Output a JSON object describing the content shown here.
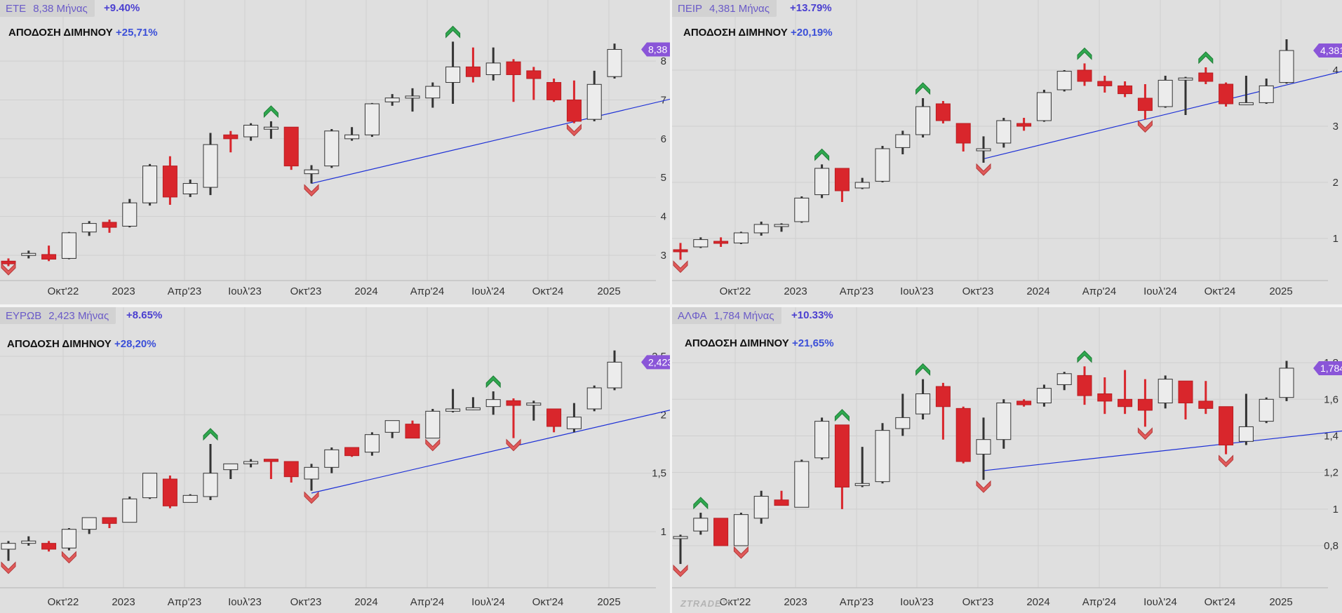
{
  "chart_data": [
    {
      "type": "candlestick",
      "ticker": "ΕΤΕ",
      "price_label": "8,38 Μήνας",
      "change": "+9.40%",
      "performance_label": "ΑΠΟΔΟΣΗ ΔΙΜΗΝΟΥ",
      "performance_value": "+25,71%",
      "last_price": "8,38",
      "y_ticks": [
        "8",
        "7",
        "6",
        "5",
        "4",
        "3"
      ],
      "y_tick_values": [
        8,
        7,
        6,
        5,
        4,
        3
      ],
      "ylim": [
        2.35,
        8.85
      ],
      "x_ticks": [
        "Οκτ'22",
        "2023",
        "Απρ'23",
        "Ιουλ'23",
        "Οκτ'23",
        "2024",
        "Απρ'24",
        "Ιουλ'24",
        "Οκτ'24",
        "2025"
      ],
      "candles": [
        [
          2.85,
          2.92,
          2.72,
          2.78
        ],
        [
          3.0,
          3.12,
          2.92,
          3.05
        ],
        [
          3.02,
          3.25,
          2.85,
          2.9
        ],
        [
          2.92,
          3.6,
          2.9,
          3.58
        ],
        [
          3.6,
          3.88,
          3.5,
          3.82
        ],
        [
          3.85,
          3.92,
          3.58,
          3.72
        ],
        [
          3.75,
          4.45,
          3.72,
          4.35
        ],
        [
          4.35,
          5.35,
          4.28,
          5.3
        ],
        [
          5.3,
          5.55,
          4.3,
          4.5
        ],
        [
          4.58,
          4.95,
          4.5,
          4.85
        ],
        [
          4.75,
          6.15,
          4.55,
          5.85
        ],
        [
          6.1,
          6.2,
          5.65,
          6.0
        ],
        [
          6.05,
          6.4,
          5.95,
          6.35
        ],
        [
          6.25,
          6.45,
          6.0,
          6.3
        ],
        [
          6.3,
          6.3,
          5.2,
          5.3
        ],
        [
          5.1,
          5.32,
          4.85,
          5.2
        ],
        [
          5.3,
          6.25,
          5.25,
          6.2
        ],
        [
          6.0,
          6.3,
          5.95,
          6.1
        ],
        [
          6.1,
          6.92,
          6.05,
          6.9
        ],
        [
          6.95,
          7.15,
          6.85,
          7.05
        ],
        [
          7.1,
          7.3,
          6.7,
          7.1
        ],
        [
          7.05,
          7.45,
          6.8,
          7.35
        ],
        [
          7.45,
          8.5,
          6.9,
          7.85
        ],
        [
          7.85,
          8.35,
          7.45,
          7.6
        ],
        [
          7.65,
          8.35,
          7.5,
          7.95
        ],
        [
          7.98,
          8.05,
          6.95,
          7.65
        ],
        [
          7.75,
          7.85,
          7.0,
          7.55
        ],
        [
          7.45,
          7.55,
          6.95,
          7.0
        ],
        [
          7.0,
          7.5,
          6.4,
          6.45
        ],
        [
          6.5,
          7.75,
          6.45,
          7.4
        ],
        [
          7.6,
          8.45,
          7.55,
          8.3
        ]
      ],
      "markers": [
        {
          "i": 0,
          "dir": "down"
        },
        {
          "i": 13,
          "dir": "up"
        },
        {
          "i": 15,
          "dir": "down"
        },
        {
          "i": 22,
          "dir": "up"
        },
        {
          "i": 28,
          "dir": "down"
        }
      ],
      "trendline": {
        "i1": 15,
        "v1": 4.85,
        "i2": 33,
        "v2": 7.05
      }
    },
    {
      "type": "candlestick",
      "ticker": "ΠΕΙΡ",
      "price_label": "4,381 Μήνας",
      "change": "+13.79%",
      "performance_label": "ΑΠΟΔΟΣΗ ΔΙΜΗΝΟΥ",
      "performance_value": "+20,19%",
      "last_price": "4,381",
      "y_ticks": [
        "4",
        "3",
        "2",
        "1"
      ],
      "y_tick_values": [
        4,
        3,
        2,
        1
      ],
      "ylim": [
        0.25,
        4.75
      ],
      "x_ticks": [
        "Οκτ'22",
        "2023",
        "Απρ'23",
        "Ιουλ'23",
        "Οκτ'23",
        "2024",
        "Απρ'24",
        "Ιουλ'24",
        "Οκτ'24",
        "2025"
      ],
      "candles": [
        [
          0.8,
          0.92,
          0.62,
          0.78
        ],
        [
          0.85,
          1.02,
          0.83,
          0.98
        ],
        [
          0.95,
          1.02,
          0.85,
          0.92
        ],
        [
          0.92,
          1.12,
          0.9,
          1.1
        ],
        [
          1.1,
          1.3,
          1.05,
          1.25
        ],
        [
          1.25,
          1.27,
          1.12,
          1.25
        ],
        [
          1.3,
          1.75,
          1.28,
          1.72
        ],
        [
          1.78,
          2.32,
          1.72,
          2.25
        ],
        [
          2.25,
          2.25,
          1.65,
          1.85
        ],
        [
          1.9,
          2.08,
          1.88,
          2.0
        ],
        [
          2.02,
          2.65,
          2.0,
          2.6
        ],
        [
          2.62,
          2.92,
          2.5,
          2.85
        ],
        [
          2.85,
          3.5,
          2.8,
          3.35
        ],
        [
          3.4,
          3.45,
          3.05,
          3.1
        ],
        [
          3.05,
          3.05,
          2.55,
          2.7
        ],
        [
          2.6,
          2.82,
          2.35,
          2.6
        ],
        [
          2.7,
          3.15,
          2.62,
          3.1
        ],
        [
          3.05,
          3.15,
          2.92,
          3.0
        ],
        [
          3.1,
          3.65,
          3.08,
          3.6
        ],
        [
          3.65,
          4.0,
          3.62,
          3.98
        ],
        [
          4.0,
          4.12,
          3.72,
          3.8
        ],
        [
          3.8,
          3.9,
          3.6,
          3.72
        ],
        [
          3.72,
          3.8,
          3.52,
          3.58
        ],
        [
          3.5,
          3.75,
          3.12,
          3.28
        ],
        [
          3.35,
          3.9,
          3.33,
          3.82
        ],
        [
          3.85,
          3.88,
          3.2,
          3.86
        ],
        [
          3.95,
          4.05,
          3.75,
          3.8
        ],
        [
          3.75,
          3.78,
          3.35,
          3.4
        ],
        [
          3.4,
          3.9,
          3.38,
          3.42
        ],
        [
          3.42,
          3.85,
          3.4,
          3.72
        ],
        [
          3.78,
          4.55,
          3.76,
          4.35
        ]
      ],
      "markers": [
        {
          "i": 0,
          "dir": "down"
        },
        {
          "i": 7,
          "dir": "up"
        },
        {
          "i": 12,
          "dir": "up"
        },
        {
          "i": 15,
          "dir": "down"
        },
        {
          "i": 20,
          "dir": "up"
        },
        {
          "i": 23,
          "dir": "down"
        },
        {
          "i": 26,
          "dir": "up"
        }
      ],
      "trendline": {
        "i1": 15,
        "v1": 2.42,
        "i2": 33,
        "v2": 4.0
      }
    },
    {
      "type": "candlestick",
      "ticker": "ΕΥΡΩΒ",
      "price_label": "2,423 Μήνας",
      "change": "+8.65%",
      "performance_label": "ΑΠΟΔΟΣΗ ΔΙΜΗΝΟΥ",
      "performance_value": "+28,20%",
      "last_price": "2,423",
      "y_ticks": [
        "2,5",
        "2",
        "1,5",
        "1"
      ],
      "y_tick_values": [
        2.5,
        2,
        1.5,
        1
      ],
      "ylim": [
        0.52,
        2.68
      ],
      "x_ticks": [
        "Οκτ'22",
        "2023",
        "Απρ'23",
        "Ιουλ'23",
        "Οκτ'23",
        "2024",
        "Απρ'24",
        "Ιουλ'24",
        "Οκτ'24",
        "2025"
      ],
      "candles": [
        [
          0.85,
          0.92,
          0.75,
          0.9
        ],
        [
          0.9,
          0.96,
          0.88,
          0.92
        ],
        [
          0.9,
          0.92,
          0.83,
          0.85
        ],
        [
          0.86,
          1.03,
          0.84,
          1.02
        ],
        [
          1.02,
          1.12,
          0.98,
          1.12
        ],
        [
          1.12,
          1.12,
          1.03,
          1.07
        ],
        [
          1.08,
          1.3,
          1.08,
          1.28
        ],
        [
          1.29,
          1.5,
          1.28,
          1.5
        ],
        [
          1.45,
          1.48,
          1.2,
          1.22
        ],
        [
          1.25,
          1.32,
          1.25,
          1.31
        ],
        [
          1.3,
          1.75,
          1.27,
          1.5
        ],
        [
          1.53,
          1.58,
          1.45,
          1.58
        ],
        [
          1.58,
          1.62,
          1.55,
          1.6
        ],
        [
          1.62,
          1.62,
          1.45,
          1.6
        ],
        [
          1.6,
          1.6,
          1.42,
          1.47
        ],
        [
          1.45,
          1.58,
          1.35,
          1.55
        ],
        [
          1.55,
          1.72,
          1.5,
          1.7
        ],
        [
          1.72,
          1.72,
          1.64,
          1.65
        ],
        [
          1.68,
          1.85,
          1.65,
          1.83
        ],
        [
          1.85,
          1.93,
          1.8,
          1.95
        ],
        [
          1.92,
          1.95,
          1.8,
          1.8
        ],
        [
          1.8,
          2.05,
          1.8,
          2.03
        ],
        [
          2.03,
          2.22,
          2.02,
          2.05
        ],
        [
          2.05,
          2.15,
          2.04,
          2.06
        ],
        [
          2.07,
          2.2,
          2.0,
          2.13
        ],
        [
          2.12,
          2.14,
          1.8,
          2.08
        ],
        [
          2.1,
          2.12,
          1.95,
          2.1
        ],
        [
          2.05,
          2.05,
          1.85,
          1.9
        ],
        [
          1.88,
          2.1,
          1.85,
          1.98
        ],
        [
          2.05,
          2.25,
          2.03,
          2.23
        ],
        [
          2.23,
          2.55,
          2.21,
          2.45
        ]
      ],
      "markers": [
        {
          "i": 0,
          "dir": "down"
        },
        {
          "i": 3,
          "dir": "down"
        },
        {
          "i": 10,
          "dir": "up"
        },
        {
          "i": 15,
          "dir": "down"
        },
        {
          "i": 21,
          "dir": "down"
        },
        {
          "i": 24,
          "dir": "up"
        },
        {
          "i": 25,
          "dir": "down"
        }
      ],
      "trendline": {
        "i1": 15,
        "v1": 1.33,
        "i2": 33,
        "v2": 2.05
      }
    },
    {
      "type": "candlestick",
      "ticker": "ΑΛΦΑ",
      "price_label": "1,784 Μήνας",
      "change": "+10.33%",
      "performance_label": "ΑΠΟΔΟΣΗ ΔΙΜΗΝΟΥ",
      "performance_value": "+21,65%",
      "last_price": "1,784",
      "y_ticks": [
        "1,8",
        "1,6",
        "1,4",
        "1,2",
        "1",
        "0,8"
      ],
      "y_tick_values": [
        1.8,
        1.6,
        1.4,
        1.2,
        1.0,
        0.8
      ],
      "ylim": [
        0.57,
        1.95
      ],
      "x_ticks": [
        "Οκτ'22",
        "2023",
        "Απρ'23",
        "Ιουλ'23",
        "Οκτ'23",
        "2024",
        "Απρ'24",
        "Ιουλ'24",
        "Οκτ'24",
        "2025"
      ],
      "candles": [
        [
          0.84,
          0.86,
          0.7,
          0.85
        ],
        [
          0.88,
          0.98,
          0.86,
          0.95
        ],
        [
          0.95,
          0.95,
          0.8,
          0.8
        ],
        [
          0.8,
          0.98,
          0.8,
          0.97
        ],
        [
          0.95,
          1.1,
          0.92,
          1.07
        ],
        [
          1.05,
          1.1,
          1.02,
          1.02
        ],
        [
          1.01,
          1.27,
          1.01,
          1.26
        ],
        [
          1.28,
          1.5,
          1.27,
          1.48
        ],
        [
          1.46,
          1.46,
          1.0,
          1.12
        ],
        [
          1.13,
          1.34,
          1.12,
          1.14
        ],
        [
          1.15,
          1.47,
          1.14,
          1.43
        ],
        [
          1.44,
          1.63,
          1.4,
          1.5
        ],
        [
          1.52,
          1.71,
          1.49,
          1.63
        ],
        [
          1.67,
          1.69,
          1.38,
          1.56
        ],
        [
          1.55,
          1.56,
          1.25,
          1.26
        ],
        [
          1.3,
          1.5,
          1.16,
          1.38
        ],
        [
          1.38,
          1.6,
          1.33,
          1.58
        ],
        [
          1.59,
          1.6,
          1.56,
          1.57
        ],
        [
          1.58,
          1.68,
          1.56,
          1.66
        ],
        [
          1.68,
          1.75,
          1.65,
          1.74
        ],
        [
          1.73,
          1.78,
          1.57,
          1.62
        ],
        [
          1.63,
          1.72,
          1.52,
          1.59
        ],
        [
          1.6,
          1.76,
          1.52,
          1.56
        ],
        [
          1.6,
          1.71,
          1.45,
          1.54
        ],
        [
          1.58,
          1.73,
          1.55,
          1.71
        ],
        [
          1.7,
          1.7,
          1.49,
          1.58
        ],
        [
          1.59,
          1.7,
          1.52,
          1.55
        ],
        [
          1.56,
          1.56,
          1.3,
          1.35
        ],
        [
          1.37,
          1.63,
          1.35,
          1.45
        ],
        [
          1.48,
          1.61,
          1.47,
          1.6
        ],
        [
          1.61,
          1.81,
          1.59,
          1.77
        ]
      ],
      "markers": [
        {
          "i": 0,
          "dir": "down"
        },
        {
          "i": 1,
          "dir": "up"
        },
        {
          "i": 3,
          "dir": "down"
        },
        {
          "i": 8,
          "dir": "up"
        },
        {
          "i": 12,
          "dir": "up"
        },
        {
          "i": 15,
          "dir": "down"
        },
        {
          "i": 20,
          "dir": "up"
        },
        {
          "i": 23,
          "dir": "down"
        },
        {
          "i": 27,
          "dir": "down"
        }
      ],
      "trendline": {
        "i1": 15,
        "v1": 1.21,
        "i2": 33,
        "v2": 1.43
      }
    }
  ],
  "watermark": "ZTRADE™",
  "colors": {
    "background": "#dfdfdf",
    "up_candle_fill": "#ececec",
    "down_candle_fill": "#d9262c",
    "trendline": "#1c2fd6",
    "price_tag": "#8a55d8",
    "up_arrow": "#2fa84f",
    "down_arrow": "#e05a5a"
  }
}
